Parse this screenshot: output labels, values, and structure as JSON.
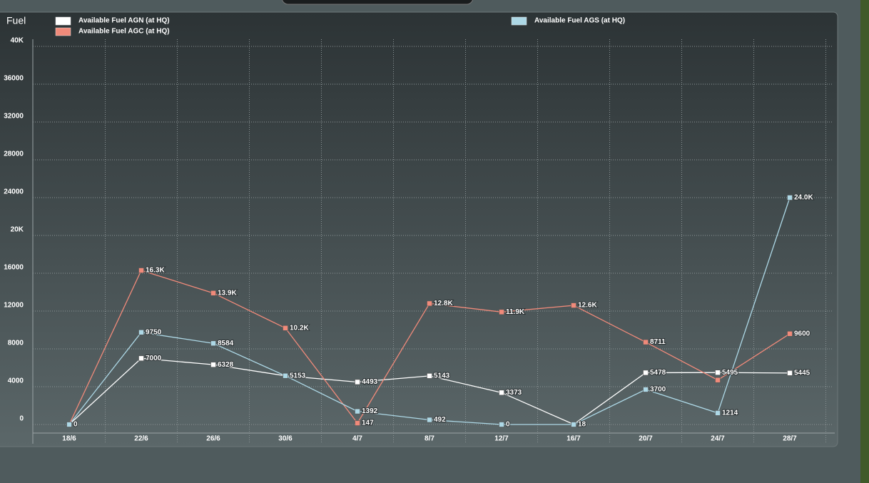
{
  "chart_data": {
    "type": "line",
    "y_label": "Fuel",
    "categories": [
      "18/6",
      "22/6",
      "26/6",
      "30/6",
      "4/7",
      "8/7",
      "12/7",
      "16/7",
      "20/7",
      "24/7",
      "28/7"
    ],
    "series": [
      {
        "name": "Available Fuel AGN (at HQ)",
        "color": "#ffffff",
        "values": [
          0,
          7000,
          6328,
          5153,
          4493,
          5143,
          3373,
          18,
          5478,
          5495,
          5445
        ],
        "value_labels": [
          "0",
          "7000",
          "6328",
          "5153",
          "4493",
          "5143",
          "3373",
          "18",
          "5478",
          "5495",
          "5445"
        ]
      },
      {
        "name": "Available Fuel AGC (at HQ)",
        "color": "#f08a7a",
        "values": [
          0,
          16300,
          13900,
          10200,
          147,
          12800,
          11900,
          12600,
          8711,
          4700,
          9600
        ],
        "value_labels": [
          null,
          "16.3K",
          "13.9K",
          "10.2K",
          "147",
          "12.8K",
          "11.9K",
          "12.6K",
          "8711",
          null,
          "9600"
        ]
      },
      {
        "name": "Available Fuel AGS (at HQ)",
        "color": "#add8e6",
        "values": [
          0,
          9750,
          8584,
          5153,
          1392,
          492,
          0,
          0,
          3700,
          1214,
          24000
        ],
        "value_labels": [
          null,
          "9750",
          "8584",
          null,
          "1392",
          "492",
          "0",
          null,
          "3700",
          "1214",
          "24.0K"
        ]
      }
    ],
    "ylim": [
      0,
      40000
    ],
    "yticks": [
      0,
      4000,
      8000,
      12000,
      16000,
      {
        "value": 20000,
        "label": "20K"
      },
      24000,
      28000,
      32000,
      36000,
      {
        "value": 40000,
        "label": "40K"
      }
    ],
    "grid": true
  }
}
